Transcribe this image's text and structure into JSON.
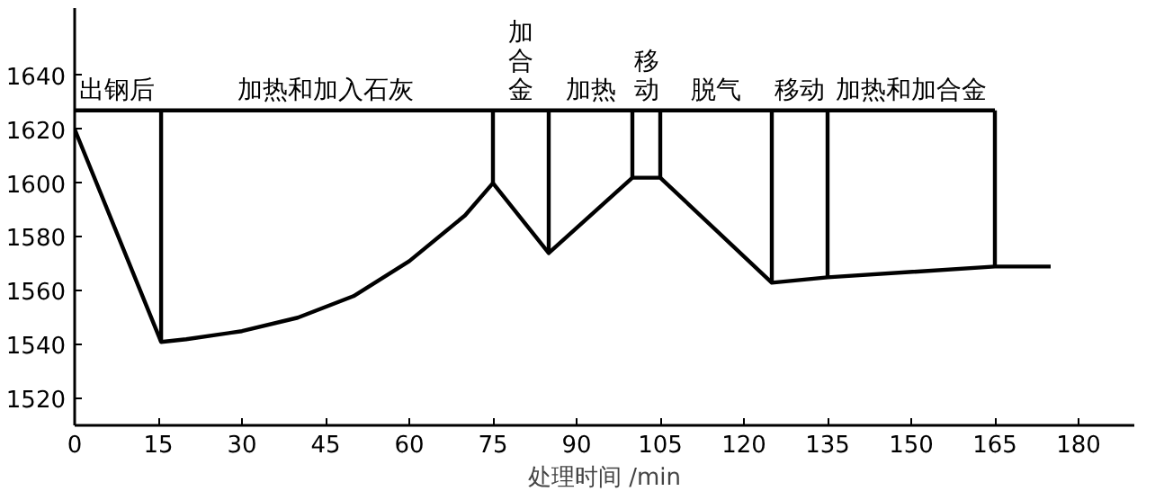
{
  "chart_data": {
    "type": "line",
    "xlabel": "处理时间 /min",
    "xlim": [
      0,
      190
    ],
    "xticks": [
      0,
      15,
      30,
      45,
      60,
      75,
      90,
      105,
      120,
      135,
      150,
      165,
      180
    ],
    "ylim": [
      1510,
      1665
    ],
    "yticks": [
      1520,
      1540,
      1560,
      1580,
      1600,
      1620,
      1640
    ],
    "grid": false,
    "marker": "none",
    "line_style": "solid",
    "series": [
      {
        "color": "#000000",
        "x": [
          0,
          15.5,
          20,
          30,
          40,
          50,
          60,
          70,
          75,
          85,
          100,
          105,
          125,
          135,
          165,
          175
        ],
        "values": [
          1620,
          1541,
          1542,
          1545,
          1550,
          1558,
          1571,
          1588,
          1600,
          1574,
          1602,
          1602,
          1563,
          1565,
          1569,
          1569
        ]
      },
      {
        "color": "#000000",
        "x": [
          0,
          165
        ],
        "values": [
          1627,
          1627
        ]
      },
      {
        "color": "#000000",
        "x": [
          15.5,
          15.5
        ],
        "values": [
          1541,
          1627
        ]
      },
      {
        "color": "#000000",
        "x": [
          75,
          75
        ],
        "values": [
          1600,
          1627
        ]
      },
      {
        "color": "#000000",
        "x": [
          85,
          85
        ],
        "values": [
          1574,
          1627
        ]
      },
      {
        "color": "#000000",
        "x": [
          100,
          100
        ],
        "values": [
          1602,
          1627
        ]
      },
      {
        "color": "#000000",
        "x": [
          105,
          105
        ],
        "values": [
          1602,
          1627
        ]
      },
      {
        "color": "#000000",
        "x": [
          125,
          125
        ],
        "values": [
          1563,
          1627
        ]
      },
      {
        "color": "#000000",
        "x": [
          135,
          135
        ],
        "values": [
          1565,
          1627
        ]
      },
      {
        "color": "#000000",
        "x": [
          165,
          165
        ],
        "values": [
          1569,
          1627
        ]
      }
    ],
    "annotations": [
      {
        "text": "出钢后",
        "x": 7.5,
        "y": 1629
      },
      {
        "text": "加热和加入石灰",
        "x": 45,
        "y": 1629
      },
      {
        "text": "加合金",
        "x": 80,
        "y": 1629
      },
      {
        "text": "加热",
        "x": 92.5,
        "y": 1629
      },
      {
        "text": "移动",
        "x": 102.5,
        "y": 1629
      },
      {
        "text": "脱气",
        "x": 115,
        "y": 1629
      },
      {
        "text": "移动",
        "x": 130,
        "y": 1629
      },
      {
        "text": "加热和加合金",
        "x": 150,
        "y": 1629
      }
    ]
  }
}
